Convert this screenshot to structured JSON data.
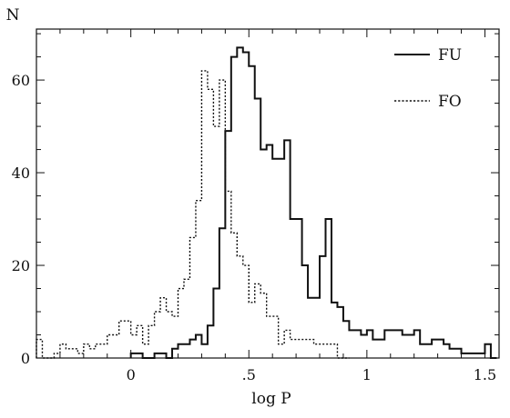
{
  "chart_data": {
    "type": "histogram-step",
    "title": "",
    "xlabel": "log P",
    "ylabel": "N",
    "xlim": [
      -0.4,
      1.56
    ],
    "ylim": [
      0,
      71
    ],
    "bin_width": 0.025,
    "x_ticks": [
      {
        "value": 0,
        "label": "0"
      },
      {
        "value": 0.5,
        "label": ".5"
      },
      {
        "value": 1,
        "label": "1"
      },
      {
        "value": 1.5,
        "label": "1.5"
      }
    ],
    "y_ticks": [
      {
        "value": 0,
        "label": "0"
      },
      {
        "value": 20,
        "label": "20"
      },
      {
        "value": 40,
        "label": "40"
      },
      {
        "value": 60,
        "label": "60"
      }
    ],
    "legend_position": "top-right",
    "series": [
      {
        "name": "FU",
        "line_style": "solid",
        "x_start": 0,
        "values": [
          1,
          1,
          0,
          0,
          1,
          1,
          0,
          2,
          3,
          3,
          4,
          5,
          3,
          7,
          15,
          28,
          49,
          65,
          67,
          66,
          63,
          56,
          45,
          46,
          43,
          43,
          47,
          30,
          30,
          20,
          13,
          13,
          22,
          30,
          12,
          11,
          8,
          6,
          6,
          5,
          6,
          4,
          4,
          6,
          6,
          6,
          5,
          5,
          6,
          3,
          3,
          4,
          4,
          3,
          2,
          2,
          1,
          1,
          1,
          1,
          3,
          0
        ]
      },
      {
        "name": "FO",
        "line_style": "dotted",
        "x_start": -0.4,
        "values": [
          4,
          0,
          0,
          1,
          3,
          2,
          2,
          1,
          3,
          2,
          3,
          3,
          5,
          5,
          8,
          8,
          5,
          7,
          3,
          7,
          10,
          13,
          10,
          9,
          15,
          17,
          26,
          34,
          62,
          58,
          50,
          60,
          36,
          27,
          22,
          20,
          12,
          16,
          14,
          9,
          9,
          3,
          6,
          4,
          4,
          4,
          4,
          3,
          3,
          3,
          3,
          0,
          0
        ]
      }
    ]
  }
}
